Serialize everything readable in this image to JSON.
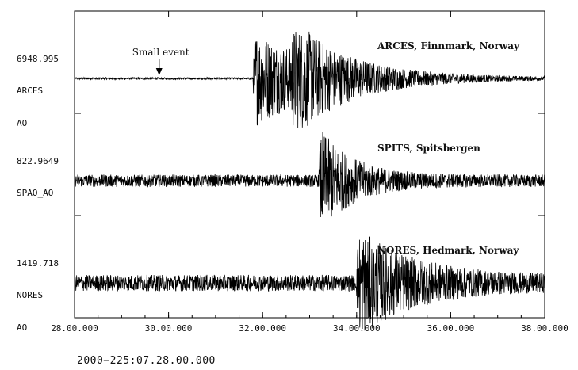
{
  "chart_data": {
    "type": "line",
    "x_unit": "minutes.seconds",
    "xlim": [
      28,
      38
    ],
    "x_ticks": [
      "28.00.000",
      "30.00.000",
      "32.00.000",
      "34.00.000",
      "36.00.000",
      "38.00.000"
    ],
    "time_reference": "2000−225:07.28.00.000",
    "annotation": {
      "text": "Small event",
      "x": 29.8
    },
    "series": [
      {
        "station_label": "ARCES, Finnmark, Norway",
        "amplitude": "6948.995",
        "channel_line1": "ARCES",
        "channel_line2": "AO",
        "noise_level": 0.02,
        "onsets": [
          {
            "t": 31.8,
            "amp": 0.95,
            "decay": 1.6
          },
          {
            "t": 32.6,
            "amp": 0.7,
            "decay": 0.9
          }
        ]
      },
      {
        "station_label": "SPITS, Spitsbergen",
        "amplitude": "822.9649",
        "channel_line1": "SPAO_AO",
        "channel_line2": "",
        "noise_level": 0.12,
        "onsets": [
          {
            "t": 33.2,
            "amp": 0.95,
            "decay": 0.7
          }
        ]
      },
      {
        "station_label": "NORES, Hedmark, Norway",
        "amplitude": "1419.718",
        "channel_line1": "NORES",
        "channel_line2": "AO",
        "noise_level": 0.16,
        "onsets": [
          {
            "t": 34.0,
            "amp": 0.95,
            "decay": 1.2
          }
        ]
      }
    ]
  }
}
